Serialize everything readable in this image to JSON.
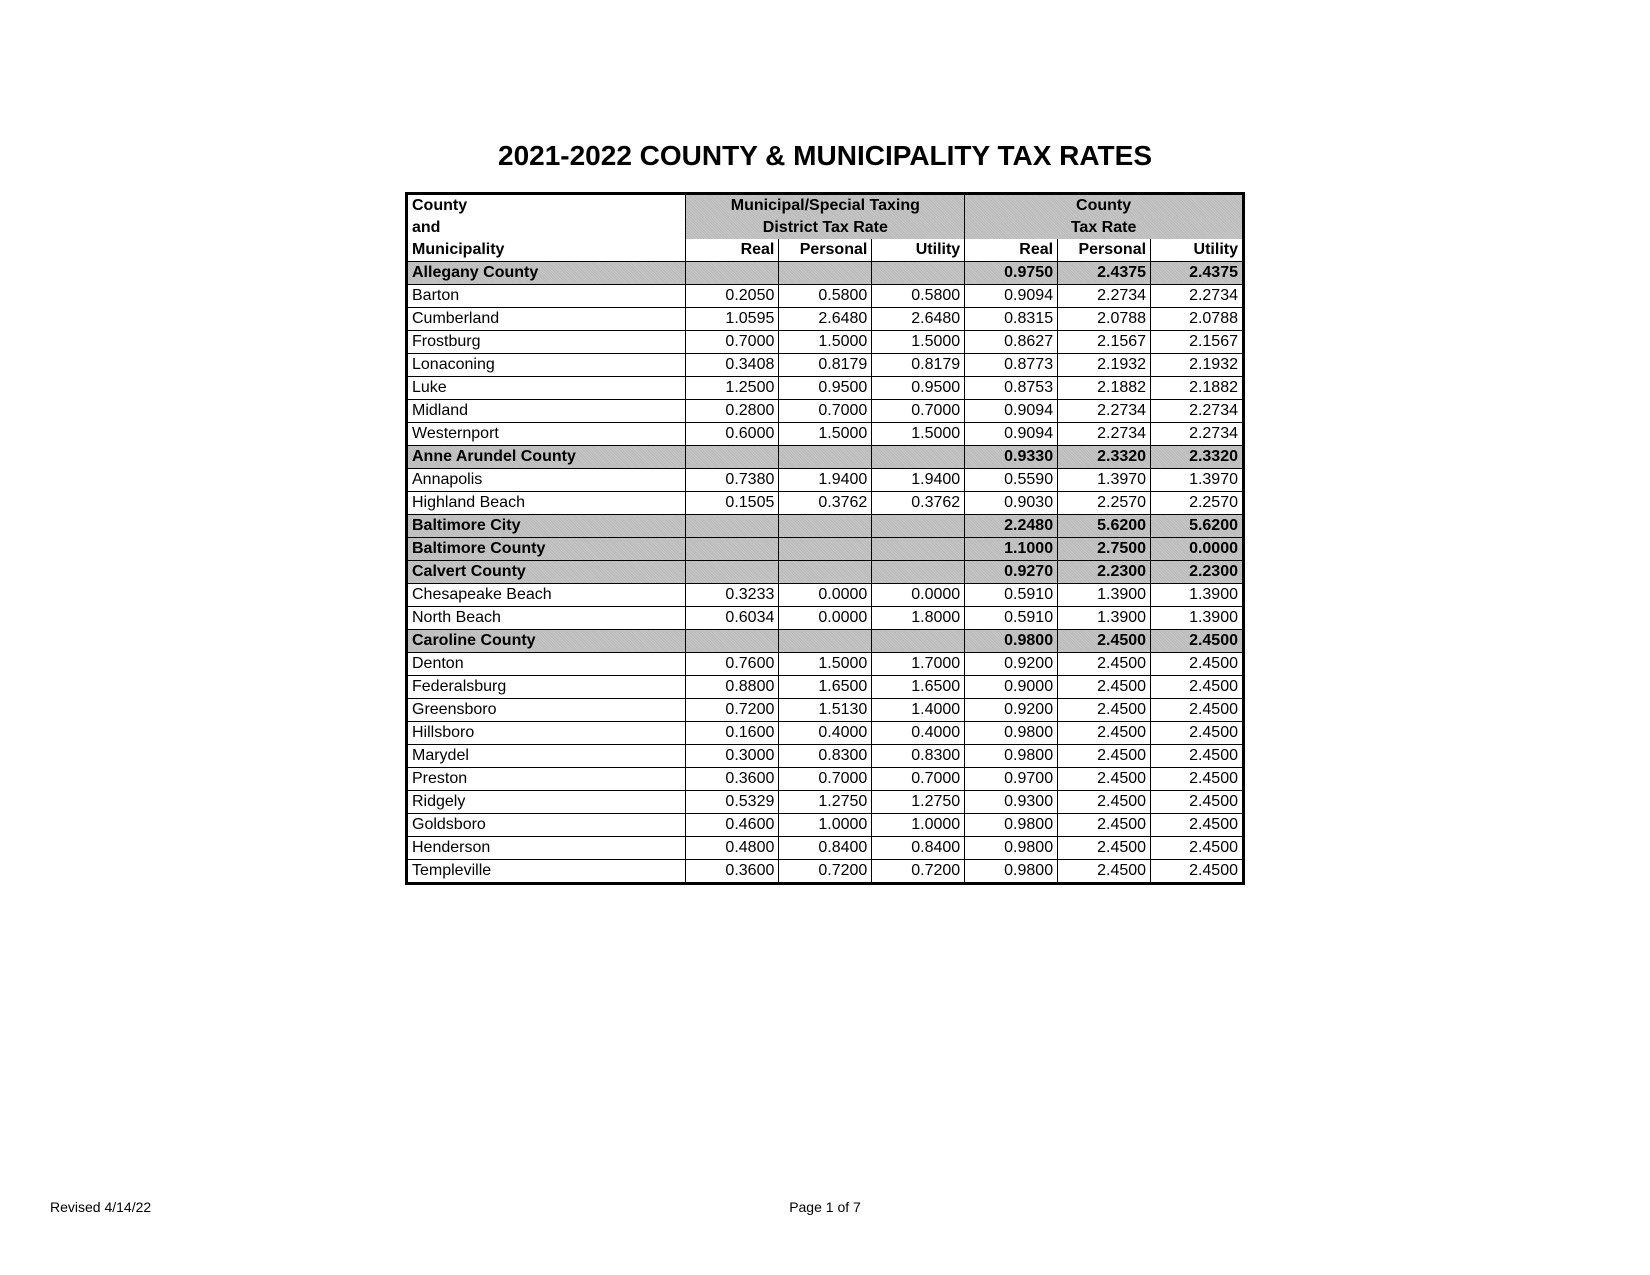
{
  "title": "2021-2022 COUNTY & MUNICIPALITY TAX RATES",
  "footer": {
    "revised": "Revised 4/14/22",
    "page": "Page 1 of 7"
  },
  "headers": {
    "col1_line1": "County",
    "col1_line2": "and",
    "col1_line3": "Municipality",
    "group1_line1": "Municipal/Special Taxing",
    "group1_line2": "District Tax Rate",
    "group2_line1": "County",
    "group2_line2": "Tax Rate",
    "sub_real": "Real",
    "sub_personal": "Personal",
    "sub_utility": "Utility"
  },
  "rows": [
    {
      "type": "county",
      "name": "Allegany County",
      "m_real": "",
      "m_pers": "",
      "m_util": "",
      "c_real": "0.9750",
      "c_pers": "2.4375",
      "c_util": "2.4375"
    },
    {
      "type": "muni",
      "name": "Barton",
      "m_real": "0.2050",
      "m_pers": "0.5800",
      "m_util": "0.5800",
      "c_real": "0.9094",
      "c_pers": "2.2734",
      "c_util": "2.2734"
    },
    {
      "type": "muni",
      "name": "Cumberland",
      "m_real": "1.0595",
      "m_pers": "2.6480",
      "m_util": "2.6480",
      "c_real": "0.8315",
      "c_pers": "2.0788",
      "c_util": "2.0788"
    },
    {
      "type": "muni",
      "name": "Frostburg",
      "m_real": "0.7000",
      "m_pers": "1.5000",
      "m_util": "1.5000",
      "c_real": "0.8627",
      "c_pers": "2.1567",
      "c_util": "2.1567"
    },
    {
      "type": "muni",
      "name": "Lonaconing",
      "m_real": "0.3408",
      "m_pers": "0.8179",
      "m_util": "0.8179",
      "c_real": "0.8773",
      "c_pers": "2.1932",
      "c_util": "2.1932"
    },
    {
      "type": "muni",
      "name": "Luke",
      "m_real": "1.2500",
      "m_pers": "0.9500",
      "m_util": "0.9500",
      "c_real": "0.8753",
      "c_pers": "2.1882",
      "c_util": "2.1882"
    },
    {
      "type": "muni",
      "name": "Midland",
      "m_real": "0.2800",
      "m_pers": "0.7000",
      "m_util": "0.7000",
      "c_real": "0.9094",
      "c_pers": "2.2734",
      "c_util": "2.2734"
    },
    {
      "type": "muni",
      "name": "Westernport",
      "m_real": "0.6000",
      "m_pers": "1.5000",
      "m_util": "1.5000",
      "c_real": "0.9094",
      "c_pers": "2.2734",
      "c_util": "2.2734"
    },
    {
      "type": "county",
      "name": "Anne Arundel County",
      "m_real": "",
      "m_pers": "",
      "m_util": "",
      "c_real": "0.9330",
      "c_pers": "2.3320",
      "c_util": "2.3320"
    },
    {
      "type": "muni",
      "name": "Annapolis",
      "m_real": "0.7380",
      "m_pers": "1.9400",
      "m_util": "1.9400",
      "c_real": "0.5590",
      "c_pers": "1.3970",
      "c_util": "1.3970"
    },
    {
      "type": "muni",
      "name": "Highland Beach",
      "m_real": "0.1505",
      "m_pers": "0.3762",
      "m_util": "0.3762",
      "c_real": "0.9030",
      "c_pers": "2.2570",
      "c_util": "2.2570"
    },
    {
      "type": "county",
      "name": "Baltimore City",
      "m_real": "",
      "m_pers": "",
      "m_util": "",
      "c_real": "2.2480",
      "c_pers": "5.6200",
      "c_util": "5.6200"
    },
    {
      "type": "county",
      "name": "Baltimore County",
      "m_real": "",
      "m_pers": "",
      "m_util": "",
      "c_real": "1.1000",
      "c_pers": "2.7500",
      "c_util": "0.0000"
    },
    {
      "type": "county",
      "name": "Calvert County",
      "m_real": "",
      "m_pers": "",
      "m_util": "",
      "c_real": "0.9270",
      "c_pers": "2.2300",
      "c_util": "2.2300"
    },
    {
      "type": "muni",
      "name": "Chesapeake  Beach",
      "m_real": "0.3233",
      "m_pers": "0.0000",
      "m_util": "0.0000",
      "c_real": "0.5910",
      "c_pers": "1.3900",
      "c_util": "1.3900"
    },
    {
      "type": "muni",
      "name": "North Beach",
      "m_real": "0.6034",
      "m_pers": "0.0000",
      "m_util": "1.8000",
      "c_real": "0.5910",
      "c_pers": "1.3900",
      "c_util": "1.3900"
    },
    {
      "type": "county",
      "name": "Caroline County",
      "m_real": "",
      "m_pers": "",
      "m_util": "",
      "c_real": "0.9800",
      "c_pers": "2.4500",
      "c_util": "2.4500"
    },
    {
      "type": "muni",
      "name": "Denton",
      "m_real": "0.7600",
      "m_pers": "1.5000",
      "m_util": "1.7000",
      "c_real": "0.9200",
      "c_pers": "2.4500",
      "c_util": "2.4500"
    },
    {
      "type": "muni",
      "name": "Federalsburg",
      "m_real": "0.8800",
      "m_pers": "1.6500",
      "m_util": "1.6500",
      "c_real": "0.9000",
      "c_pers": "2.4500",
      "c_util": "2.4500"
    },
    {
      "type": "muni",
      "name": "Greensboro",
      "m_real": "0.7200",
      "m_pers": "1.5130",
      "m_util": "1.4000",
      "c_real": "0.9200",
      "c_pers": "2.4500",
      "c_util": "2.4500"
    },
    {
      "type": "muni",
      "name": "Hillsboro",
      "m_real": "0.1600",
      "m_pers": "0.4000",
      "m_util": "0.4000",
      "c_real": "0.9800",
      "c_pers": "2.4500",
      "c_util": "2.4500"
    },
    {
      "type": "muni",
      "name": "Marydel",
      "m_real": "0.3000",
      "m_pers": "0.8300",
      "m_util": "0.8300",
      "c_real": "0.9800",
      "c_pers": "2.4500",
      "c_util": "2.4500"
    },
    {
      "type": "muni",
      "name": "Preston",
      "m_real": "0.3600",
      "m_pers": "0.7000",
      "m_util": "0.7000",
      "c_real": "0.9700",
      "c_pers": "2.4500",
      "c_util": "2.4500"
    },
    {
      "type": "muni",
      "name": "Ridgely",
      "m_real": "0.5329",
      "m_pers": "1.2750",
      "m_util": "1.2750",
      "c_real": "0.9300",
      "c_pers": "2.4500",
      "c_util": "2.4500"
    },
    {
      "type": "muni",
      "name": "Goldsboro",
      "m_real": "0.4600",
      "m_pers": "1.0000",
      "m_util": "1.0000",
      "c_real": "0.9800",
      "c_pers": "2.4500",
      "c_util": "2.4500"
    },
    {
      "type": "muni",
      "name": "Henderson",
      "m_real": "0.4800",
      "m_pers": "0.8400",
      "m_util": "0.8400",
      "c_real": "0.9800",
      "c_pers": "2.4500",
      "c_util": "2.4500"
    },
    {
      "type": "muni",
      "name": "Templeville",
      "m_real": "0.3600",
      "m_pers": "0.7200",
      "m_util": "0.7200",
      "c_real": "0.9800",
      "c_pers": "2.4500",
      "c_util": "2.4500"
    }
  ]
}
